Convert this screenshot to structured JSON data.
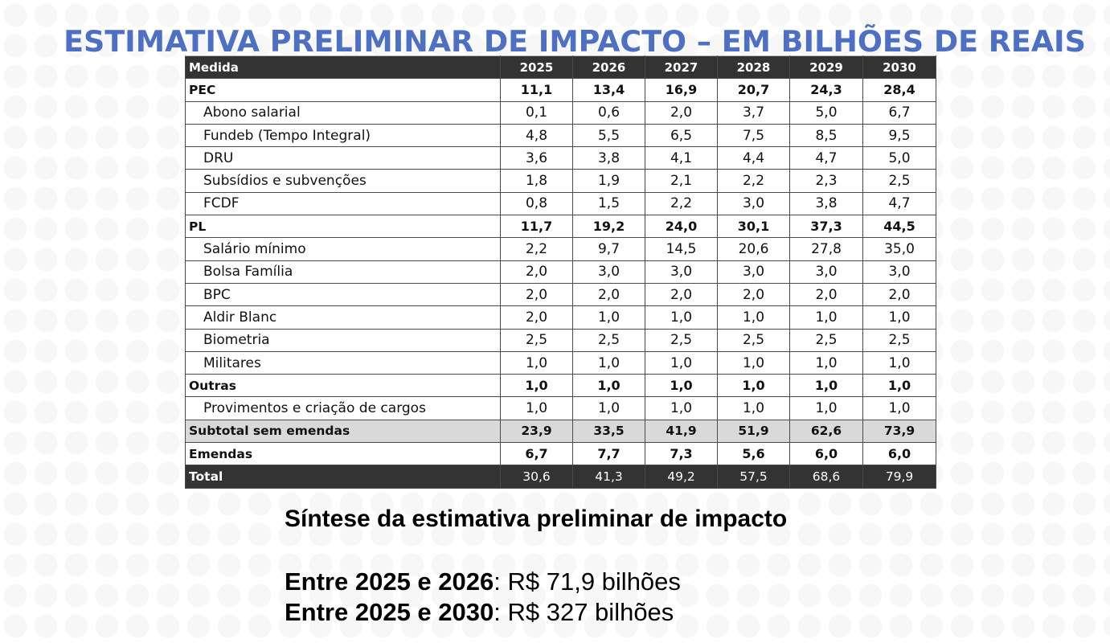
{
  "title": "ESTIMATIVA PRELIMINAR DE IMPACTO – EM BILHÕES DE REAIS",
  "table": {
    "columns": [
      "Medida",
      "2025",
      "2026",
      "2027",
      "2028",
      "2029",
      "2030"
    ],
    "rows": [
      {
        "label": "PEC",
        "values": [
          "11,1",
          "13,4",
          "16,9",
          "20,7",
          "24,3",
          "28,4"
        ]
      },
      {
        "label": "Abono salarial",
        "values": [
          "0,1",
          "0,6",
          "2,0",
          "3,7",
          "5,0",
          "6,7"
        ]
      },
      {
        "label": "Fundeb (Tempo Integral)",
        "values": [
          "4,8",
          "5,5",
          "6,5",
          "7,5",
          "8,5",
          "9,5"
        ]
      },
      {
        "label": "DRU",
        "values": [
          "3,6",
          "3,8",
          "4,1",
          "4,4",
          "4,7",
          "5,0"
        ]
      },
      {
        "label": "Subsídios e subvenções",
        "values": [
          "1,8",
          "1,9",
          "2,1",
          "2,2",
          "2,3",
          "2,5"
        ]
      },
      {
        "label": "FCDF",
        "values": [
          "0,8",
          "1,5",
          "2,2",
          "3,0",
          "3,8",
          "4,7"
        ]
      },
      {
        "label": "PL",
        "values": [
          "11,7",
          "19,2",
          "24,0",
          "30,1",
          "37,3",
          "44,5"
        ]
      },
      {
        "label": "Salário mínimo",
        "values": [
          "2,2",
          "9,7",
          "14,5",
          "20,6",
          "27,8",
          "35,0"
        ]
      },
      {
        "label": "Bolsa Família",
        "values": [
          "2,0",
          "3,0",
          "3,0",
          "3,0",
          "3,0",
          "3,0"
        ]
      },
      {
        "label": "BPC",
        "values": [
          "2,0",
          "2,0",
          "2,0",
          "2,0",
          "2,0",
          "2,0"
        ]
      },
      {
        "label": "Aldir Blanc",
        "values": [
          "2,0",
          "1,0",
          "1,0",
          "1,0",
          "1,0",
          "1,0"
        ]
      },
      {
        "label": "Biometria",
        "values": [
          "2,5",
          "2,5",
          "2,5",
          "2,5",
          "2,5",
          "2,5"
        ]
      },
      {
        "label": "Militares",
        "values": [
          "1,0",
          "1,0",
          "1,0",
          "1,0",
          "1,0",
          "1,0"
        ]
      },
      {
        "label": "Outras",
        "values": [
          "1,0",
          "1,0",
          "1,0",
          "1,0",
          "1,0",
          "1,0"
        ]
      },
      {
        "label": "Provimentos e criação de cargos",
        "values": [
          "1,0",
          "1,0",
          "1,0",
          "1,0",
          "1,0",
          "1,0"
        ]
      },
      {
        "label": "Subtotal sem emendas",
        "values": [
          "23,9",
          "33,5",
          "41,9",
          "51,9",
          "62,6",
          "73,9"
        ]
      },
      {
        "label": "Emendas",
        "values": [
          "6,7",
          "7,7",
          "7,3",
          "5,6",
          "6,0",
          "6,0"
        ]
      },
      {
        "label": "Total",
        "values": [
          "30,6",
          "41,3",
          "49,2",
          "57,5",
          "68,6",
          "79,9"
        ]
      }
    ]
  },
  "synthesis": {
    "heading": "Síntese da estimativa preliminar de impacto",
    "lines": [
      {
        "period": "Entre 2025 e 2026",
        "sep": ": ",
        "value": "R$ 71,9 bilhões"
      },
      {
        "period": "Entre 2025 e 2030",
        "sep": ": ",
        "value": "R$ 327 bilhões"
      }
    ]
  }
}
